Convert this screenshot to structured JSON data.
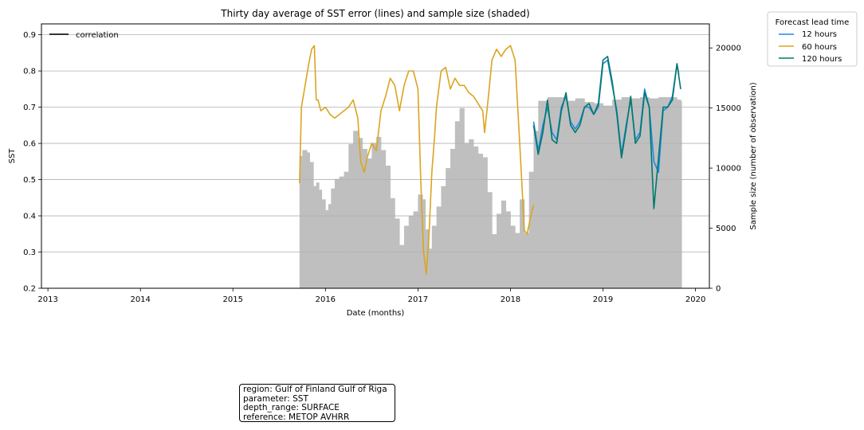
{
  "chart_data": {
    "type": "line",
    "title": "Thirty day average of SST error (lines) and sample size (shaded)",
    "xlabel": "Date (months)",
    "ylabel": "SST",
    "y2label": "Sample size (number of observation)",
    "xlim": [
      2012.93,
      2020.15
    ],
    "ylim": [
      0.2,
      0.93
    ],
    "y2lim": [
      0,
      22000
    ],
    "x_ticks": [
      2013,
      2014,
      2015,
      2016,
      2017,
      2018,
      2019,
      2020
    ],
    "y_ticks": [
      0.2,
      0.3,
      0.4,
      0.5,
      0.6,
      0.7,
      0.8,
      0.9
    ],
    "y_tick_labels": [
      "0.2",
      "0.3",
      "0.4",
      "0.5",
      "0.6",
      "0.7",
      "0.8",
      "0.9"
    ],
    "y2_ticks": [
      0,
      5000,
      10000,
      15000,
      20000
    ],
    "grid": "y-major",
    "legend_line": {
      "label": "correlation",
      "color": "#000000",
      "position": "top-left"
    },
    "legend": {
      "title": "Forecast lead time",
      "position": "outside-right",
      "entries": [
        {
          "label": "12 hours",
          "color": "#1e88e5"
        },
        {
          "label": "60 hours",
          "color": "#daa520"
        },
        {
          "label": "120 hours",
          "color": "#00796b"
        }
      ]
    },
    "sample_size": {
      "color": "#bfbfbf",
      "x": [
        2015.72,
        2015.75,
        2015.8,
        2015.83,
        2015.87,
        2015.9,
        2015.93,
        2015.96,
        2016.0,
        2016.03,
        2016.06,
        2016.1,
        2016.15,
        2016.2,
        2016.25,
        2016.3,
        2016.35,
        2016.4,
        2016.45,
        2016.5,
        2016.55,
        2016.6,
        2016.65,
        2016.7,
        2016.75,
        2016.8,
        2016.85,
        2016.9,
        2016.95,
        2017.0,
        2017.05,
        2017.08,
        2017.12,
        2017.15,
        2017.2,
        2017.25,
        2017.3,
        2017.35,
        2017.4,
        2017.45,
        2017.5,
        2017.55,
        2017.6,
        2017.65,
        2017.7,
        2017.75,
        2017.8,
        2017.85,
        2017.9,
        2017.95,
        2018.0,
        2018.05,
        2018.1,
        2018.15,
        2018.2,
        2018.25,
        2018.3,
        2018.4,
        2018.5,
        2018.6,
        2018.7,
        2018.8,
        2018.9,
        2019.0,
        2019.1,
        2019.2,
        2019.3,
        2019.4,
        2019.5,
        2019.6,
        2019.7,
        2019.8,
        2019.84
      ],
      "values": [
        11000,
        11500,
        11300,
        10500,
        8500,
        8800,
        8200,
        7400,
        6500,
        7000,
        8300,
        9100,
        9300,
        9700,
        12000,
        13100,
        12500,
        11600,
        10800,
        12100,
        12600,
        11500,
        10200,
        7500,
        5800,
        3600,
        5200,
        6000,
        6400,
        7800,
        7400,
        4900,
        3300,
        5200,
        6800,
        8500,
        10000,
        11600,
        13900,
        15000,
        12100,
        12400,
        11800,
        11200,
        10900,
        8000,
        4500,
        6200,
        7300,
        6400,
        5200,
        4600,
        7400,
        4600,
        9700,
        13100,
        15600,
        15900,
        15900,
        15600,
        15800,
        15500,
        15400,
        15200,
        15700,
        15900,
        15800,
        15900,
        15800,
        15900,
        15900,
        15700,
        15600
      ]
    },
    "series": [
      {
        "name": "60 hours",
        "color": "#daa520",
        "x": [
          2015.72,
          2015.74,
          2015.78,
          2015.82,
          2015.85,
          2015.88,
          2015.9,
          2015.92,
          2015.95,
          2016.0,
          2016.05,
          2016.1,
          2016.15,
          2016.2,
          2016.25,
          2016.3,
          2016.35,
          2016.38,
          2016.42,
          2016.45,
          2016.5,
          2016.55,
          2016.6,
          2016.65,
          2016.7,
          2016.75,
          2016.8,
          2016.85,
          2016.9,
          2016.95,
          2017.0,
          2017.03,
          2017.06,
          2017.09,
          2017.12,
          2017.15,
          2017.18,
          2017.2,
          2017.25,
          2017.3,
          2017.35,
          2017.4,
          2017.45,
          2017.5,
          2017.55,
          2017.6,
          2017.65,
          2017.7,
          2017.72,
          2017.75,
          2017.8,
          2017.85,
          2017.9,
          2017.95,
          2018.0,
          2018.05,
          2018.1,
          2018.15,
          2018.18,
          2018.22,
          2018.25
        ],
        "y": [
          0.49,
          0.7,
          0.76,
          0.82,
          0.86,
          0.87,
          0.72,
          0.72,
          0.69,
          0.7,
          0.68,
          0.67,
          0.68,
          0.69,
          0.7,
          0.72,
          0.67,
          0.55,
          0.52,
          0.56,
          0.6,
          0.58,
          0.69,
          0.73,
          0.78,
          0.76,
          0.69,
          0.76,
          0.8,
          0.8,
          0.75,
          0.5,
          0.3,
          0.24,
          0.35,
          0.52,
          0.62,
          0.7,
          0.8,
          0.81,
          0.75,
          0.78,
          0.76,
          0.76,
          0.74,
          0.73,
          0.71,
          0.69,
          0.63,
          0.7,
          0.83,
          0.86,
          0.84,
          0.86,
          0.87,
          0.83,
          0.6,
          0.36,
          0.35,
          0.4,
          0.43
        ]
      },
      {
        "name": "12 hours",
        "color": "#1e88e5",
        "x": [
          2018.25,
          2018.3,
          2018.35,
          2018.4,
          2018.45,
          2018.5,
          2018.55,
          2018.6,
          2018.65,
          2018.7,
          2018.75,
          2018.8,
          2018.85,
          2018.9,
          2018.95,
          2019.0,
          2019.05,
          2019.1,
          2019.15,
          2019.2,
          2019.25,
          2019.3,
          2019.35,
          2019.4,
          2019.45,
          2019.5,
          2019.55,
          2019.6,
          2019.65,
          2019.7,
          2019.75,
          2019.8,
          2019.82
        ],
        "y": [
          0.66,
          0.58,
          0.65,
          0.7,
          0.63,
          0.61,
          0.7,
          0.73,
          0.66,
          0.64,
          0.66,
          0.7,
          0.7,
          0.68,
          0.7,
          0.82,
          0.83,
          0.76,
          0.69,
          0.57,
          0.65,
          0.72,
          0.61,
          0.63,
          0.75,
          0.7,
          0.55,
          0.52,
          0.69,
          0.7,
          0.73,
          0.82,
          0.79
        ]
      },
      {
        "name": "120 hours",
        "color": "#00796b",
        "x": [
          2018.25,
          2018.3,
          2018.35,
          2018.4,
          2018.45,
          2018.5,
          2018.55,
          2018.6,
          2018.65,
          2018.7,
          2018.75,
          2018.8,
          2018.85,
          2018.9,
          2018.95,
          2019.0,
          2019.05,
          2019.1,
          2019.15,
          2019.2,
          2019.25,
          2019.3,
          2019.35,
          2019.4,
          2019.45,
          2019.5,
          2019.55,
          2019.6,
          2019.65,
          2019.7,
          2019.75,
          2019.8,
          2019.84
        ],
        "y": [
          0.65,
          0.57,
          0.63,
          0.72,
          0.61,
          0.6,
          0.69,
          0.74,
          0.65,
          0.63,
          0.65,
          0.7,
          0.71,
          0.68,
          0.71,
          0.83,
          0.84,
          0.77,
          0.68,
          0.56,
          0.64,
          0.73,
          0.6,
          0.62,
          0.74,
          0.7,
          0.42,
          0.56,
          0.7,
          0.7,
          0.72,
          0.82,
          0.75
        ]
      }
    ]
  },
  "info_box": {
    "lines": [
      "region: Gulf of Finland Gulf of Riga",
      "parameter: SST",
      "depth_range: SURFACE",
      "reference: METOP AVHRR"
    ]
  }
}
